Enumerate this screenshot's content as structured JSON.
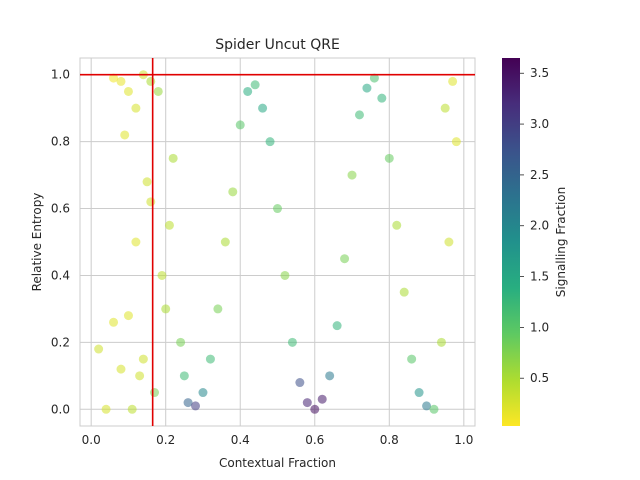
{
  "chart_data": {
    "type": "scatter",
    "title": "Spider Uncut QRE",
    "xlabel": "Contextual Fraction",
    "ylabel": "Relative Entropy",
    "xlim": [
      -0.03,
      1.03
    ],
    "ylim": [
      -0.05,
      1.05
    ],
    "xticks": [
      0.0,
      0.2,
      0.4,
      0.6,
      0.8,
      1.0
    ],
    "yticks": [
      0.0,
      0.2,
      0.4,
      0.6,
      0.8,
      1.0
    ],
    "grid": true,
    "reference_lines": [
      {
        "orientation": "vertical",
        "value": 0.165,
        "color": "#e00000"
      },
      {
        "orientation": "horizontal",
        "value": 1.0,
        "color": "#e00000"
      }
    ],
    "colorbar": {
      "label": "Signalling Fraction",
      "colormap": "viridis",
      "min": 0.03,
      "max": 3.65,
      "ticks": [
        0.5,
        1.0,
        1.5,
        2.0,
        2.5,
        3.0,
        3.5
      ],
      "tick_labels": [
        "0.5",
        "1.0",
        "1.5",
        "2.0",
        "2.5",
        "3.0",
        "3.5"
      ]
    },
    "points": [
      [
        0.02,
        0.18,
        0.3
      ],
      [
        0.04,
        0.0,
        0.25
      ],
      [
        0.06,
        0.26,
        0.2
      ],
      [
        0.08,
        0.12,
        0.25
      ],
      [
        0.1,
        0.28,
        0.2
      ],
      [
        0.12,
        0.5,
        0.2
      ],
      [
        0.14,
        0.15,
        0.3
      ],
      [
        0.15,
        0.68,
        0.3
      ],
      [
        0.16,
        0.62,
        0.3
      ],
      [
        0.17,
        0.05,
        0.8
      ],
      [
        0.06,
        0.99,
        0.1
      ],
      [
        0.08,
        0.98,
        0.15
      ],
      [
        0.09,
        0.82,
        0.2
      ],
      [
        0.1,
        0.95,
        0.2
      ],
      [
        0.12,
        0.9,
        0.25
      ],
      [
        0.14,
        1.0,
        0.3
      ],
      [
        0.16,
        0.98,
        0.5
      ],
      [
        0.18,
        0.95,
        0.6
      ],
      [
        0.13,
        0.1,
        0.3
      ],
      [
        0.11,
        0.0,
        0.4
      ],
      [
        0.2,
        0.3,
        0.5
      ],
      [
        0.19,
        0.4,
        0.4
      ],
      [
        0.21,
        0.55,
        0.4
      ],
      [
        0.22,
        0.75,
        0.5
      ],
      [
        0.24,
        0.2,
        0.8
      ],
      [
        0.25,
        0.1,
        1.2
      ],
      [
        0.26,
        0.02,
        2.5
      ],
      [
        0.28,
        0.01,
        3.0
      ],
      [
        0.3,
        0.05,
        2.0
      ],
      [
        0.32,
        0.15,
        1.2
      ],
      [
        0.34,
        0.3,
        0.8
      ],
      [
        0.36,
        0.5,
        0.5
      ],
      [
        0.38,
        0.65,
        0.6
      ],
      [
        0.4,
        0.85,
        1.0
      ],
      [
        0.42,
        0.95,
        1.4
      ],
      [
        0.44,
        0.97,
        1.2
      ],
      [
        0.46,
        0.9,
        1.5
      ],
      [
        0.48,
        0.8,
        1.3
      ],
      [
        0.5,
        0.6,
        0.9
      ],
      [
        0.52,
        0.4,
        0.7
      ],
      [
        0.54,
        0.2,
        1.2
      ],
      [
        0.56,
        0.08,
        2.8
      ],
      [
        0.58,
        0.02,
        3.3
      ],
      [
        0.6,
        0.0,
        3.5
      ],
      [
        0.62,
        0.03,
        3.4
      ],
      [
        0.64,
        0.1,
        2.2
      ],
      [
        0.66,
        0.25,
        1.3
      ],
      [
        0.68,
        0.45,
        0.8
      ],
      [
        0.7,
        0.7,
        0.7
      ],
      [
        0.72,
        0.88,
        1.2
      ],
      [
        0.74,
        0.96,
        1.5
      ],
      [
        0.76,
        0.99,
        1.1
      ],
      [
        0.78,
        0.93,
        1.3
      ],
      [
        0.8,
        0.75,
        0.9
      ],
      [
        0.82,
        0.55,
        0.5
      ],
      [
        0.84,
        0.35,
        0.5
      ],
      [
        0.86,
        0.15,
        1.0
      ],
      [
        0.88,
        0.05,
        1.8
      ],
      [
        0.9,
        0.01,
        2.2
      ],
      [
        0.92,
        0.0,
        1.0
      ],
      [
        0.94,
        0.2,
        0.5
      ],
      [
        0.96,
        0.5,
        0.3
      ],
      [
        0.98,
        0.8,
        0.2
      ],
      [
        0.97,
        0.98,
        0.2
      ],
      [
        0.95,
        0.9,
        0.4
      ]
    ]
  }
}
